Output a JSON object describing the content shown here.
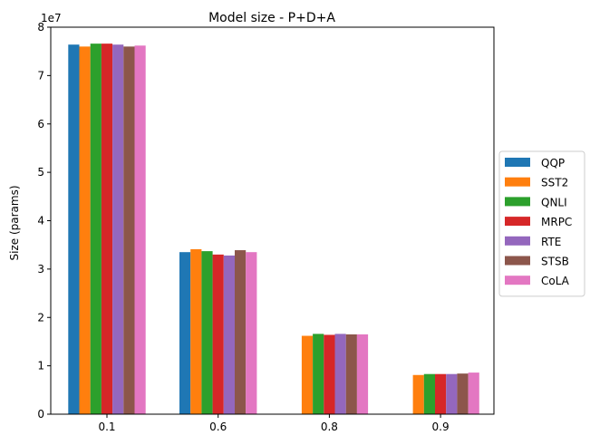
{
  "chart_data": {
    "type": "bar",
    "title": "Model size - P+D+A",
    "xlabel": "",
    "ylabel": "Size (params)",
    "y_offset_label": "1e7",
    "ylim": [
      0,
      80000000
    ],
    "yticks": [
      0,
      10000000,
      20000000,
      30000000,
      40000000,
      50000000,
      60000000,
      70000000,
      80000000
    ],
    "ytick_labels": [
      "0",
      "1",
      "2",
      "3",
      "4",
      "5",
      "6",
      "7",
      "8"
    ],
    "categories": [
      "0.1",
      "0.6",
      "0.8",
      "0.9"
    ],
    "legend_position": "center-right-outside",
    "grid": false,
    "series": [
      {
        "name": "QQP",
        "color": "#1f77b4",
        "values": [
          76400000,
          33500000,
          null,
          null
        ]
      },
      {
        "name": "SST2",
        "color": "#ff7f0e",
        "values": [
          76000000,
          34100000,
          16200000,
          8100000
        ]
      },
      {
        "name": "QNLI",
        "color": "#2ca02c",
        "values": [
          76600000,
          33700000,
          16600000,
          8300000
        ]
      },
      {
        "name": "MRPC",
        "color": "#d62728",
        "values": [
          76600000,
          33000000,
          16400000,
          8300000
        ]
      },
      {
        "name": "RTE",
        "color": "#9467bd",
        "values": [
          76400000,
          32800000,
          16600000,
          8300000
        ]
      },
      {
        "name": "STSB",
        "color": "#8c564b",
        "values": [
          76000000,
          33900000,
          16500000,
          8400000
        ]
      },
      {
        "name": "CoLA",
        "color": "#e377c2",
        "values": [
          76200000,
          33500000,
          16500000,
          8600000
        ]
      }
    ]
  }
}
